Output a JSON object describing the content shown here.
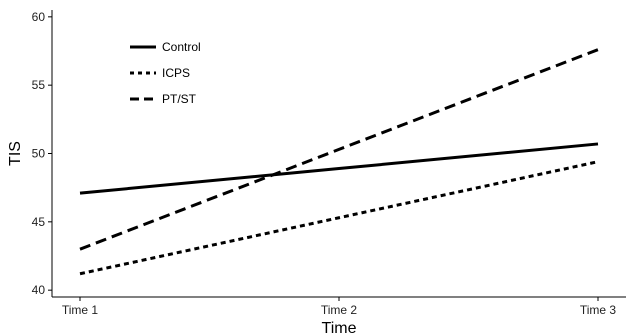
{
  "chart_data": {
    "type": "line",
    "title": "",
    "xlabel": "Time",
    "ylabel": "TIS",
    "categories": [
      "Time 1",
      "Time 2",
      "Time 3"
    ],
    "ylim": [
      39.5,
      60.5
    ],
    "yticks": [
      40,
      45,
      50,
      55,
      60
    ],
    "grid": false,
    "legend_position": "top-left",
    "series": [
      {
        "name": "Control",
        "values": [
          47.1,
          48.9,
          50.7
        ],
        "line_style": "solid",
        "color": "#000000"
      },
      {
        "name": "ICPS",
        "values": [
          41.2,
          45.3,
          49.4
        ],
        "line_style": "dotted",
        "color": "#000000"
      },
      {
        "name": "PT/ST",
        "values": [
          43.0,
          50.3,
          57.6
        ],
        "line_style": "dashed",
        "color": "#000000"
      }
    ]
  }
}
